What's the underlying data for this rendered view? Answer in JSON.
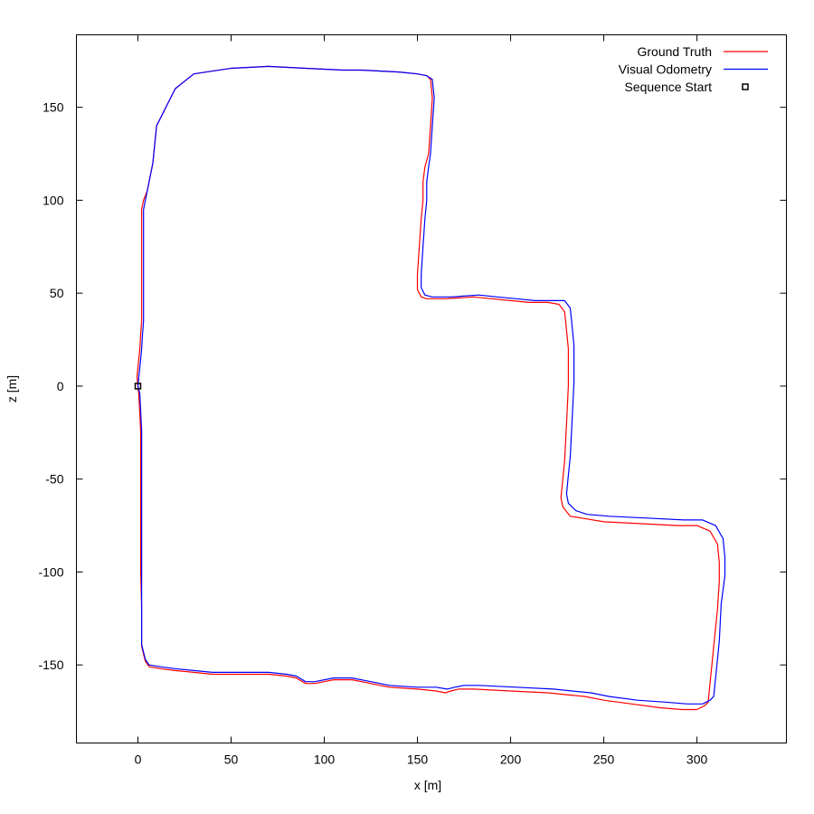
{
  "chart_data": {
    "type": "line",
    "title": "",
    "xlabel": "x [m]",
    "ylabel": "z [m]",
    "xlim": [
      -33,
      348
    ],
    "ylim": [
      -192,
      189
    ],
    "xticks": [
      0,
      50,
      100,
      150,
      200,
      250,
      300
    ],
    "yticks": [
      -150,
      -100,
      -50,
      0,
      50,
      100,
      150
    ],
    "grid": false,
    "legend_position": "top-right",
    "series": [
      {
        "name": "Ground Truth",
        "color": "#ff0000",
        "style": "line",
        "x": [
          0,
          -0.5,
          0,
          1,
          1.5,
          2,
          2,
          2,
          2,
          2,
          3,
          5,
          8,
          10,
          20,
          30,
          50,
          70,
          90,
          110,
          120,
          140,
          150,
          155,
          157,
          158,
          157,
          156,
          154,
          153,
          153,
          152,
          151,
          150,
          150,
          152,
          155,
          165,
          180,
          190,
          200,
          210,
          220,
          226,
          229,
          230,
          231,
          231,
          230,
          229,
          228,
          227,
          228,
          232,
          238,
          250,
          270,
          290,
          300,
          307,
          311,
          312,
          312,
          311,
          309,
          308,
          307,
          306,
          304,
          300,
          292,
          280,
          265,
          250,
          240,
          230,
          220,
          200,
          180,
          172,
          168,
          165,
          160,
          150,
          135,
          130,
          125,
          115,
          105,
          100,
          95,
          90,
          85,
          80,
          70,
          60,
          50,
          40,
          30,
          20,
          12,
          6,
          4,
          2,
          2,
          1.5,
          1.5,
          1.5,
          1.5,
          1.5,
          1,
          0.5,
          0
        ],
        "y": [
          0,
          5,
          10,
          20,
          28,
          35,
          45,
          55,
          70,
          95,
          100,
          105,
          120,
          140,
          160,
          168,
          171,
          172,
          171,
          170,
          170,
          169,
          168,
          167,
          165,
          155,
          140,
          125,
          118,
          110,
          100,
          90,
          75,
          60,
          52,
          48,
          47,
          47,
          48,
          47,
          46,
          45,
          45,
          44,
          40,
          30,
          20,
          0,
          -20,
          -40,
          -50,
          -60,
          -65,
          -70,
          -71,
          -73,
          -74,
          -75,
          -75,
          -78,
          -85,
          -95,
          -105,
          -120,
          -140,
          -150,
          -160,
          -170,
          -172,
          -174,
          -174,
          -173,
          -171,
          -169,
          -167,
          -166,
          -165,
          -164,
          -163,
          -163,
          -164,
          -165,
          -164,
          -163,
          -162,
          -161,
          -160,
          -158,
          -158,
          -159,
          -160,
          -160,
          -157,
          -156,
          -155,
          -155,
          -155,
          -155,
          -154,
          -153,
          -152,
          -151,
          -148,
          -140,
          -120,
          -100,
          -80,
          -60,
          -40,
          -25,
          -15,
          -5,
          0
        ]
      },
      {
        "name": "Visual Odometry",
        "color": "#0000ff",
        "style": "line",
        "x": [
          0,
          0.5,
          1,
          2,
          2.5,
          3,
          3,
          3,
          3,
          3,
          4,
          5,
          8,
          10,
          20,
          30,
          50,
          70,
          90,
          110,
          120,
          140,
          150,
          155,
          158,
          159,
          158,
          157,
          156,
          155,
          155,
          154,
          153,
          152,
          152,
          154,
          158,
          168,
          183,
          193,
          203,
          213,
          223,
          229,
          232,
          233,
          234,
          234,
          233,
          232,
          231,
          230,
          231,
          235,
          241,
          253,
          273,
          293,
          303,
          310,
          314,
          315,
          315,
          313,
          312,
          311,
          310,
          309,
          307,
          303,
          295,
          283,
          268,
          253,
          243,
          233,
          223,
          203,
          183,
          175,
          170,
          166,
          160,
          150,
          135,
          130,
          125,
          115,
          105,
          100,
          95,
          90,
          85,
          80,
          70,
          60,
          50,
          40,
          30,
          20,
          12,
          6,
          4,
          2,
          2,
          2,
          2,
          2,
          2,
          2,
          1.5,
          1,
          0
        ],
        "y": [
          0,
          5,
          10,
          20,
          28,
          35,
          45,
          55,
          70,
          95,
          100,
          105,
          120,
          140,
          160,
          168,
          171,
          172,
          171,
          170,
          170,
          169,
          168,
          167,
          165,
          155,
          140,
          125,
          118,
          110,
          100,
          90,
          75,
          60,
          53,
          49,
          48,
          48,
          49,
          48,
          47,
          46,
          46,
          46,
          42,
          32,
          22,
          2,
          -18,
          -38,
          -48,
          -58,
          -63,
          -67,
          -69,
          -70,
          -71,
          -72,
          -72,
          -75,
          -82,
          -92,
          -102,
          -117,
          -137,
          -147,
          -157,
          -167,
          -169,
          -171,
          -171,
          -170,
          -169,
          -167,
          -165,
          -164,
          -163,
          -162,
          -161,
          -161,
          -162,
          -163,
          -162,
          -162,
          -161,
          -160,
          -159,
          -157,
          -157,
          -158,
          -159,
          -159,
          -156,
          -155,
          -154,
          -154,
          -154,
          -154,
          -153,
          -152,
          -151,
          -150,
          -147,
          -139,
          -119,
          -99,
          -79,
          -59,
          -39,
          -24,
          -14,
          -4,
          0
        ]
      },
      {
        "name": "Sequence Start",
        "color": "#000000",
        "style": "point",
        "x": [
          0
        ],
        "y": [
          0
        ]
      }
    ]
  }
}
